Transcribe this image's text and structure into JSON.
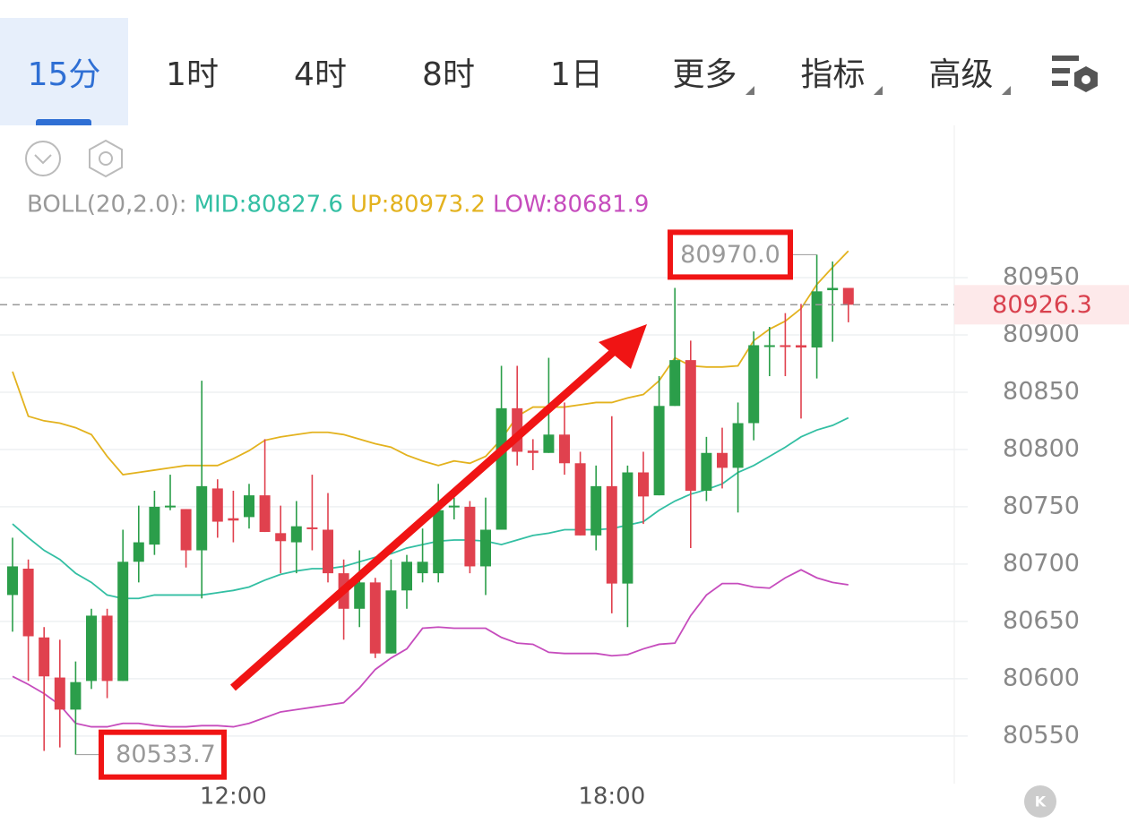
{
  "tabs": [
    "15分",
    "1时",
    "4时",
    "8时",
    "1日",
    "更多",
    "指标",
    "高级"
  ],
  "active_tab": 0,
  "dropdown_tabs": [
    5,
    6,
    7
  ],
  "corner_button": "K",
  "chart_data": {
    "type": "candlestick",
    "indicator": "BOLL(20,2.0):",
    "up_color": "#2b9e4a",
    "down_color": "#e0414e",
    "x": [
      "08:30",
      "08:45",
      "09:00",
      "09:15",
      "09:30",
      "09:45",
      "10:00",
      "10:15",
      "10:30",
      "10:45",
      "11:00",
      "11:15",
      "11:30",
      "11:45",
      "12:00",
      "12:15",
      "12:30",
      "12:45",
      "13:00",
      "13:15",
      "13:30",
      "13:45",
      "14:00",
      "14:15",
      "14:30",
      "14:45",
      "15:00",
      "15:15",
      "15:30",
      "15:45",
      "16:00",
      "16:15",
      "16:30",
      "16:45",
      "17:00",
      "17:15",
      "17:30",
      "17:45",
      "18:00",
      "18:15",
      "18:30",
      "18:45",
      "19:00",
      "19:15",
      "19:30",
      "19:45",
      "20:00",
      "20:15",
      "20:30",
      "20:45",
      "21:00",
      "21:15",
      "21:30",
      "21:45"
    ],
    "open": [
      80673,
      80696,
      80636,
      80601,
      80573,
      80598,
      80655,
      80598,
      80702,
      80717,
      80750,
      80748,
      80712,
      80766,
      80740,
      80741,
      80760,
      80727,
      80719,
      80732,
      80730,
      80692,
      80661,
      80684,
      80622,
      80677,
      80692,
      80692,
      80750,
      80750,
      80698,
      80730,
      80836,
      80799,
      80797,
      80813,
      80788,
      80725,
      80768,
      80683,
      80780,
      80760,
      80838,
      80878,
      80764,
      80797,
      80784,
      80823,
      80890,
      80891,
      80891,
      80889,
      80939,
      80941
    ],
    "high": [
      80723,
      80704,
      80645,
      80634,
      80615,
      80661,
      80661,
      80730,
      80751,
      80764,
      80778,
      80748,
      80860,
      80774,
      80764,
      80770,
      80809,
      80751,
      80755,
      80778,
      80762,
      80704,
      80712,
      80688,
      80704,
      80708,
      80731,
      80770,
      80758,
      80755,
      80758,
      80873,
      80873,
      80809,
      80880,
      80841,
      80798,
      80786,
      80829,
      80786,
      80798,
      80864,
      80941,
      80895,
      80811,
      80819,
      80841,
      80903,
      80907,
      80919,
      80927,
      80970,
      80964,
      80941
    ],
    "low": [
      80641,
      80598,
      80537,
      80540,
      80533.7,
      80591,
      80583,
      80598,
      80684,
      80708,
      80747,
      80697,
      80670,
      80723,
      80719,
      80731,
      80728,
      80692,
      80692,
      80712,
      80684,
      80634,
      80645,
      80618,
      80622,
      80661,
      80684,
      80684,
      80739,
      80692,
      80673,
      80730,
      80786,
      80782,
      80797,
      80778,
      80725,
      80712,
      80657,
      80645,
      80735,
      80760,
      80838,
      80714,
      80755,
      80766,
      80745,
      80808,
      80864,
      80864,
      80827,
      80862,
      80894,
      80911
    ],
    "close": [
      80698,
      80637,
      80602,
      80573,
      80597,
      80655,
      80598,
      80702,
      80719,
      80750,
      80751,
      80712,
      80768,
      80737,
      80738,
      80760,
      80728,
      80720,
      80733,
      80731,
      80692,
      80661,
      80684,
      80622,
      80677,
      80702,
      80702,
      80747,
      80751,
      80698,
      80730,
      80836,
      80798,
      80797,
      80813,
      80788,
      80725,
      80768,
      80683,
      80780,
      80759,
      80838,
      80878,
      80764,
      80797,
      80784,
      80823,
      80891,
      80891,
      80890,
      80889,
      80938,
      80941,
      80926.3
    ],
    "series": [
      {
        "name": "MID:80827.6",
        "color": "#33bfa3",
        "values": [
          80735,
          80723,
          80712,
          80704,
          80692,
          80684,
          80673,
          80670,
          80670,
          80673,
          80673,
          80673,
          80673,
          80675,
          80677,
          80680,
          80686,
          80691,
          80694,
          80696,
          80696,
          80698,
          80702,
          80706,
          80709,
          80714,
          80717,
          80720,
          80721,
          80721,
          80720,
          80717,
          80721,
          80725,
          80727,
          80730,
          80730,
          80730,
          80731,
          80734,
          80737,
          80747,
          80755,
          80761,
          80765,
          80770,
          80780,
          80786,
          80794,
          80802,
          80811,
          80817,
          80821,
          80827.6
        ]
      },
      {
        "name": "UP:80973.2",
        "color": "#e3b21e",
        "values": [
          80868,
          80829,
          80825,
          80823,
          80819,
          80813,
          80794,
          80778,
          80780,
          80782,
          80784,
          80786,
          80786,
          80786,
          80792,
          80799,
          80808,
          80811,
          80813,
          80815,
          80815,
          80813,
          80809,
          80805,
          80802,
          80795,
          80790,
          80786,
          80790,
          80788,
          80794,
          80809,
          80829,
          80837,
          80837,
          80837,
          80839,
          80841,
          80841,
          80845,
          80848,
          80860,
          80880,
          80873,
          80872,
          80872,
          80873,
          80895,
          80905,
          80912,
          80923,
          80944,
          80959,
          80973.2
        ]
      },
      {
        "name": "LOW:80681.9",
        "color": "#c64cbd",
        "values": [
          80602,
          80595,
          80587,
          80577,
          80561,
          80558,
          80558,
          80561,
          80561,
          80559,
          80558,
          80558,
          80559,
          80559,
          80558,
          80561,
          80566,
          80571,
          80573,
          80575,
          80577,
          80579,
          80592,
          80608,
          80618,
          80626,
          80644,
          80645,
          80644,
          80644,
          80644,
          80636,
          80631,
          80630,
          80623,
          80622,
          80622,
          80622,
          80620,
          80621,
          80626,
          80630,
          80631,
          80655,
          80673,
          80683,
          80683,
          80680,
          80679,
          80688,
          80695,
          80688,
          80684,
          80681.9
        ]
      }
    ],
    "ylim": [
      80510,
      81000
    ],
    "yticks": [
      80550,
      80600,
      80650,
      80700,
      80750,
      80800,
      80850,
      80900,
      80950
    ],
    "xticks": [
      "12:00",
      "18:00"
    ],
    "grid": true,
    "current_price": 80926.3,
    "max_label": {
      "value": 80970,
      "label": "80970.0"
    },
    "min_label": 80533.7
  }
}
